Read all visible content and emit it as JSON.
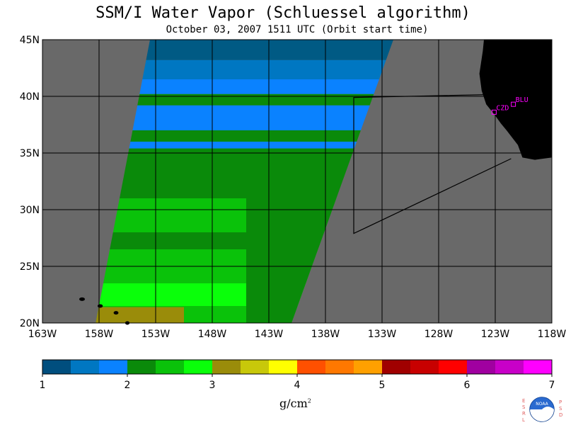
{
  "header": {
    "title": "SSM/I Water Vapor (Schluessel algorithm)",
    "subtitle": "October 03, 2007  1511 UTC  (Orbit start time)"
  },
  "map": {
    "lon_range": [
      -163,
      -118
    ],
    "lat_range": [
      20,
      45
    ],
    "lat_labels": [
      "45N",
      "40N",
      "35N",
      "30N",
      "25N",
      "20N"
    ],
    "lon_labels": [
      "163W",
      "158W",
      "153W",
      "148W",
      "143W",
      "138W",
      "133W",
      "128W",
      "123W",
      "118W"
    ],
    "stations": [
      {
        "name": "CZD",
        "lon": -123.1,
        "lat": 38.6
      },
      {
        "name": "BLU",
        "lon": -121.4,
        "lat": 39.3
      }
    ],
    "colors": {
      "ocean_background": "#696969",
      "land": "#000000",
      "grid": "#000000"
    },
    "swath_levels": {
      "north_band_lat": [
        43,
        45
      ],
      "north_band_color": "#005a84",
      "upper_blue": "#0077c2",
      "blue": "#0a82ff",
      "dark_green": "#0a8a0a",
      "green": "#0ac20a",
      "light_green": "#0aff0a",
      "olive": "#9a8c0a"
    }
  },
  "colorbar": {
    "ticks": [
      "1",
      "2",
      "3",
      "4",
      "5",
      "6",
      "7"
    ],
    "units_label": "g/cm",
    "units_sup": "2",
    "colors": [
      "#004e7e",
      "#0077c2",
      "#0a82ff",
      "#0a8a0a",
      "#0ac20a",
      "#0aff0a",
      "#9a8c0a",
      "#c8c80a",
      "#ffff00",
      "#ff5000",
      "#ff7800",
      "#ffa000",
      "#a00000",
      "#c80000",
      "#ff0000",
      "#a000a0",
      "#c800c8",
      "#ff00ff"
    ]
  },
  "logo": {
    "left_letters": [
      "E",
      "S",
      "R",
      "L"
    ],
    "right_letters": [
      "P",
      "S",
      "D"
    ],
    "center_text": "NOAA"
  }
}
